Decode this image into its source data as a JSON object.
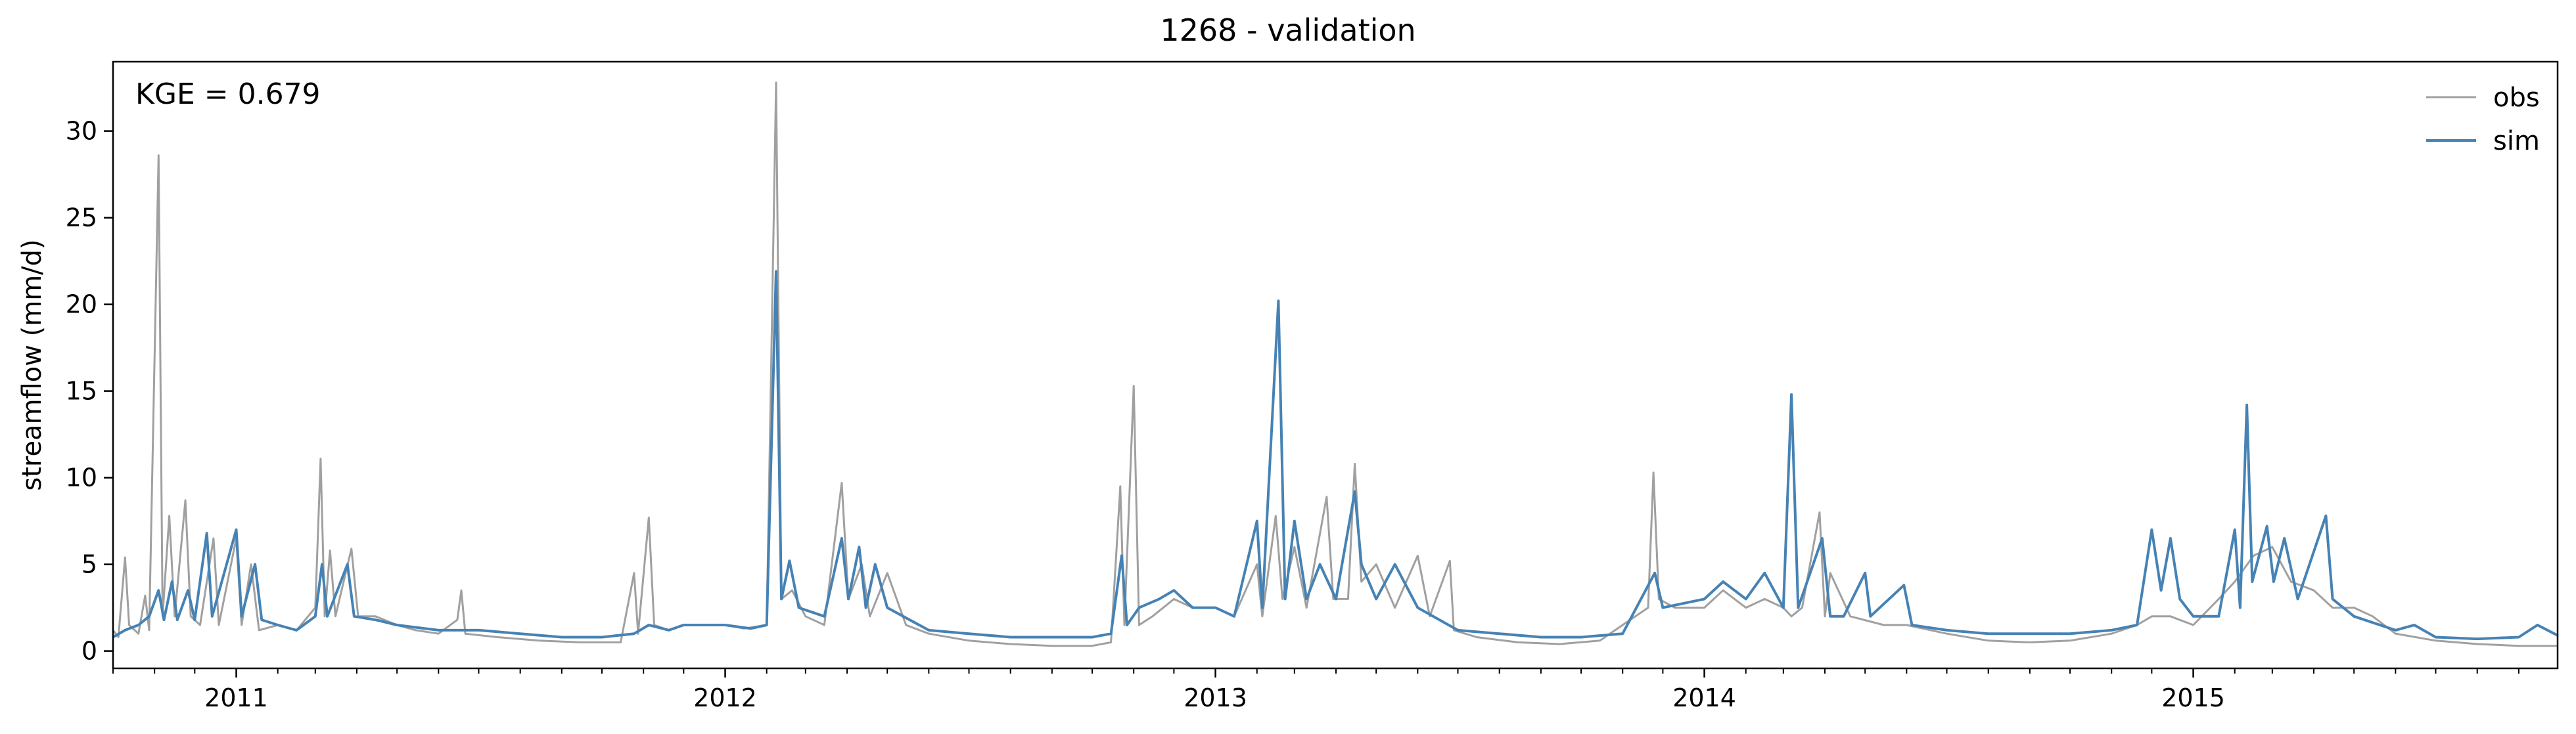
{
  "chart_data": {
    "type": "line",
    "title": "1268 - validation",
    "xlabel": "",
    "ylabel": "streamflow (mm/d)",
    "annotation": "KGE = 0.679",
    "xlim": [
      "2010-10-01",
      "2015-09-30"
    ],
    "ylim": [
      -1,
      34
    ],
    "yticks": [
      0,
      5,
      10,
      15,
      20,
      25,
      30
    ],
    "xticks": [
      {
        "date": "2011-01-01",
        "label": "2011"
      },
      {
        "date": "2012-01-01",
        "label": "2012"
      },
      {
        "date": "2013-01-01",
        "label": "2013"
      },
      {
        "date": "2014-01-01",
        "label": "2014"
      },
      {
        "date": "2015-01-01",
        "label": "2015"
      }
    ],
    "grid": false,
    "legend_position": "top-right",
    "series": [
      {
        "name": "obs",
        "color": "#a0a0a0",
        "points": [
          [
            "2010-10-01",
            1.2
          ],
          [
            "2010-10-05",
            0.8
          ],
          [
            "2010-10-10",
            5.4
          ],
          [
            "2010-10-13",
            1.5
          ],
          [
            "2010-10-20",
            1.0
          ],
          [
            "2010-10-25",
            3.2
          ],
          [
            "2010-10-28",
            1.2
          ],
          [
            "2010-11-04",
            28.6
          ],
          [
            "2010-11-07",
            2.0
          ],
          [
            "2010-11-12",
            7.8
          ],
          [
            "2010-11-16",
            2.0
          ],
          [
            "2010-11-24",
            8.7
          ],
          [
            "2010-11-28",
            2.0
          ],
          [
            "2010-12-05",
            1.5
          ],
          [
            "2010-12-15",
            6.5
          ],
          [
            "2010-12-19",
            1.5
          ],
          [
            "2011-01-01",
            6.5
          ],
          [
            "2011-01-05",
            1.5
          ],
          [
            "2011-01-12",
            5.0
          ],
          [
            "2011-01-18",
            1.2
          ],
          [
            "2011-02-01",
            1.5
          ],
          [
            "2011-02-15",
            1.2
          ],
          [
            "2011-03-01",
            2.5
          ],
          [
            "2011-03-05",
            11.1
          ],
          [
            "2011-03-08",
            2.0
          ],
          [
            "2011-03-12",
            5.8
          ],
          [
            "2011-03-16",
            2.0
          ],
          [
            "2011-03-28",
            5.9
          ],
          [
            "2011-04-02",
            2.0
          ],
          [
            "2011-04-15",
            2.0
          ],
          [
            "2011-05-01",
            1.5
          ],
          [
            "2011-05-15",
            1.2
          ],
          [
            "2011-06-01",
            1.0
          ],
          [
            "2011-06-15",
            1.8
          ],
          [
            "2011-06-18",
            3.5
          ],
          [
            "2011-06-21",
            1.0
          ],
          [
            "2011-07-15",
            0.8
          ],
          [
            "2011-08-15",
            0.6
          ],
          [
            "2011-09-15",
            0.5
          ],
          [
            "2011-10-15",
            0.5
          ],
          [
            "2011-10-25",
            4.5
          ],
          [
            "2011-10-28",
            1.0
          ],
          [
            "2011-11-05",
            7.7
          ],
          [
            "2011-11-09",
            1.5
          ],
          [
            "2011-11-20",
            1.2
          ],
          [
            "2011-12-01",
            1.5
          ],
          [
            "2011-12-15",
            1.5
          ],
          [
            "2012-01-01",
            1.5
          ],
          [
            "2012-01-15",
            1.3
          ],
          [
            "2012-02-01",
            1.5
          ],
          [
            "2012-02-08",
            32.8
          ],
          [
            "2012-02-12",
            3.0
          ],
          [
            "2012-02-20",
            3.5
          ],
          [
            "2012-03-01",
            2.0
          ],
          [
            "2012-03-15",
            1.5
          ],
          [
            "2012-03-28",
            9.7
          ],
          [
            "2012-04-02",
            3.0
          ],
          [
            "2012-04-12",
            5.0
          ],
          [
            "2012-04-18",
            2.0
          ],
          [
            "2012-05-01",
            4.5
          ],
          [
            "2012-05-15",
            1.5
          ],
          [
            "2012-06-01",
            1.0
          ],
          [
            "2012-07-01",
            0.6
          ],
          [
            "2012-08-01",
            0.4
          ],
          [
            "2012-09-01",
            0.3
          ],
          [
            "2012-10-01",
            0.3
          ],
          [
            "2012-10-15",
            0.5
          ],
          [
            "2012-10-22",
            9.5
          ],
          [
            "2012-10-25",
            1.5
          ],
          [
            "2012-11-01",
            15.3
          ],
          [
            "2012-11-05",
            1.5
          ],
          [
            "2012-11-15",
            2.0
          ],
          [
            "2012-12-01",
            3.0
          ],
          [
            "2012-12-15",
            2.5
          ],
          [
            "2013-01-01",
            2.5
          ],
          [
            "2013-01-15",
            2.0
          ],
          [
            "2013-02-01",
            5.0
          ],
          [
            "2013-02-05",
            2.0
          ],
          [
            "2013-02-15",
            7.8
          ],
          [
            "2013-02-20",
            3.0
          ],
          [
            "2013-03-01",
            6.0
          ],
          [
            "2013-03-10",
            2.5
          ],
          [
            "2013-03-25",
            8.9
          ],
          [
            "2013-03-30",
            3.0
          ],
          [
            "2013-04-10",
            3.0
          ],
          [
            "2013-04-15",
            10.8
          ],
          [
            "2013-04-20",
            4.0
          ],
          [
            "2013-05-01",
            5.0
          ],
          [
            "2013-05-15",
            2.5
          ],
          [
            "2013-06-01",
            5.5
          ],
          [
            "2013-06-10",
            2.0
          ],
          [
            "2013-06-25",
            5.2
          ],
          [
            "2013-06-28",
            1.2
          ],
          [
            "2013-07-15",
            0.8
          ],
          [
            "2013-08-15",
            0.5
          ],
          [
            "2013-09-15",
            0.4
          ],
          [
            "2013-10-15",
            0.6
          ],
          [
            "2013-11-01",
            1.5
          ],
          [
            "2013-11-20",
            2.5
          ],
          [
            "2013-11-24",
            10.3
          ],
          [
            "2013-11-28",
            3.0
          ],
          [
            "2013-12-10",
            2.5
          ],
          [
            "2014-01-01",
            2.5
          ],
          [
            "2014-01-15",
            3.5
          ],
          [
            "2014-02-01",
            2.5
          ],
          [
            "2014-02-15",
            3.0
          ],
          [
            "2014-03-01",
            2.5
          ],
          [
            "2014-03-07",
            2.0
          ],
          [
            "2014-03-15",
            2.5
          ],
          [
            "2014-03-28",
            8.0
          ],
          [
            "2014-04-01",
            2.0
          ],
          [
            "2014-04-05",
            4.5
          ],
          [
            "2014-04-20",
            2.0
          ],
          [
            "2014-05-15",
            1.5
          ],
          [
            "2014-06-01",
            1.5
          ],
          [
            "2014-07-01",
            1.0
          ],
          [
            "2014-08-01",
            0.6
          ],
          [
            "2014-09-01",
            0.5
          ],
          [
            "2014-10-01",
            0.6
          ],
          [
            "2014-11-01",
            1.0
          ],
          [
            "2014-11-20",
            1.5
          ],
          [
            "2014-12-01",
            2.0
          ],
          [
            "2014-12-15",
            2.0
          ],
          [
            "2015-01-01",
            1.5
          ],
          [
            "2015-01-20",
            3.0
          ],
          [
            "2015-02-01",
            4.0
          ],
          [
            "2015-02-15",
            5.5
          ],
          [
            "2015-03-01",
            6.0
          ],
          [
            "2015-03-15",
            4.0
          ],
          [
            "2015-04-01",
            3.5
          ],
          [
            "2015-04-15",
            2.5
          ],
          [
            "2015-05-01",
            2.5
          ],
          [
            "2015-05-15",
            2.0
          ],
          [
            "2015-06-01",
            1.0
          ],
          [
            "2015-07-01",
            0.6
          ],
          [
            "2015-08-01",
            0.4
          ],
          [
            "2015-09-01",
            0.3
          ],
          [
            "2015-09-30",
            0.3
          ]
        ]
      },
      {
        "name": "sim",
        "color": "#4682b4",
        "points": [
          [
            "2010-10-01",
            0.8
          ],
          [
            "2010-10-10",
            1.2
          ],
          [
            "2010-10-20",
            1.5
          ],
          [
            "2010-10-28",
            2.0
          ],
          [
            "2010-11-04",
            3.5
          ],
          [
            "2010-11-08",
            1.8
          ],
          [
            "2010-11-14",
            4.0
          ],
          [
            "2010-11-18",
            1.8
          ],
          [
            "2010-11-26",
            3.5
          ],
          [
            "2010-12-01",
            1.8
          ],
          [
            "2010-12-10",
            6.8
          ],
          [
            "2010-12-14",
            2.0
          ],
          [
            "2011-01-01",
            7.0
          ],
          [
            "2011-01-05",
            2.0
          ],
          [
            "2011-01-15",
            5.0
          ],
          [
            "2011-01-20",
            1.8
          ],
          [
            "2011-02-01",
            1.5
          ],
          [
            "2011-02-15",
            1.2
          ],
          [
            "2011-03-01",
            2.0
          ],
          [
            "2011-03-06",
            5.0
          ],
          [
            "2011-03-10",
            2.0
          ],
          [
            "2011-03-25",
            5.0
          ],
          [
            "2011-03-30",
            2.0
          ],
          [
            "2011-04-15",
            1.8
          ],
          [
            "2011-05-01",
            1.5
          ],
          [
            "2011-06-01",
            1.2
          ],
          [
            "2011-07-01",
            1.2
          ],
          [
            "2011-08-01",
            1.0
          ],
          [
            "2011-09-01",
            0.8
          ],
          [
            "2011-10-01",
            0.8
          ],
          [
            "2011-10-25",
            1.0
          ],
          [
            "2011-11-05",
            1.5
          ],
          [
            "2011-11-20",
            1.2
          ],
          [
            "2011-12-01",
            1.5
          ],
          [
            "2012-01-01",
            1.5
          ],
          [
            "2012-01-20",
            1.3
          ],
          [
            "2012-02-01",
            1.5
          ],
          [
            "2012-02-08",
            21.9
          ],
          [
            "2012-02-12",
            3.0
          ],
          [
            "2012-02-18",
            5.2
          ],
          [
            "2012-02-25",
            2.5
          ],
          [
            "2012-03-15",
            2.0
          ],
          [
            "2012-03-28",
            6.5
          ],
          [
            "2012-04-02",
            3.0
          ],
          [
            "2012-04-10",
            6.0
          ],
          [
            "2012-04-15",
            2.5
          ],
          [
            "2012-04-22",
            5.0
          ],
          [
            "2012-05-01",
            2.5
          ],
          [
            "2012-06-01",
            1.2
          ],
          [
            "2012-07-01",
            1.0
          ],
          [
            "2012-08-01",
            0.8
          ],
          [
            "2012-09-01",
            0.8
          ],
          [
            "2012-10-01",
            0.8
          ],
          [
            "2012-10-15",
            1.0
          ],
          [
            "2012-10-23",
            5.5
          ],
          [
            "2012-10-27",
            1.5
          ],
          [
            "2012-11-05",
            2.5
          ],
          [
            "2012-11-20",
            3.0
          ],
          [
            "2012-12-01",
            3.5
          ],
          [
            "2012-12-15",
            2.5
          ],
          [
            "2013-01-01",
            2.5
          ],
          [
            "2013-01-15",
            2.0
          ],
          [
            "2013-02-01",
            7.5
          ],
          [
            "2013-02-05",
            2.5
          ],
          [
            "2013-02-17",
            20.2
          ],
          [
            "2013-02-22",
            3.0
          ],
          [
            "2013-03-01",
            7.5
          ],
          [
            "2013-03-10",
            3.0
          ],
          [
            "2013-03-20",
            5.0
          ],
          [
            "2013-04-01",
            3.0
          ],
          [
            "2013-04-15",
            9.2
          ],
          [
            "2013-04-20",
            5.0
          ],
          [
            "2013-05-01",
            3.0
          ],
          [
            "2013-05-15",
            5.0
          ],
          [
            "2013-06-01",
            2.5
          ],
          [
            "2013-07-01",
            1.2
          ],
          [
            "2013-08-01",
            1.0
          ],
          [
            "2013-09-01",
            0.8
          ],
          [
            "2013-10-01",
            0.8
          ],
          [
            "2013-11-01",
            1.0
          ],
          [
            "2013-11-25",
            4.5
          ],
          [
            "2013-12-01",
            2.5
          ],
          [
            "2014-01-01",
            3.0
          ],
          [
            "2014-01-15",
            4.0
          ],
          [
            "2014-02-01",
            3.0
          ],
          [
            "2014-02-15",
            4.5
          ],
          [
            "2014-03-01",
            2.5
          ],
          [
            "2014-03-07",
            14.8
          ],
          [
            "2014-03-12",
            2.5
          ],
          [
            "2014-03-30",
            6.5
          ],
          [
            "2014-04-05",
            2.0
          ],
          [
            "2014-04-15",
            2.0
          ],
          [
            "2014-05-01",
            4.5
          ],
          [
            "2014-05-05",
            2.0
          ],
          [
            "2014-05-30",
            3.8
          ],
          [
            "2014-06-05",
            1.5
          ],
          [
            "2014-07-01",
            1.2
          ],
          [
            "2014-08-01",
            1.0
          ],
          [
            "2014-09-01",
            1.0
          ],
          [
            "2014-10-01",
            1.0
          ],
          [
            "2014-11-01",
            1.2
          ],
          [
            "2014-11-20",
            1.5
          ],
          [
            "2014-12-01",
            7.0
          ],
          [
            "2014-12-08",
            3.5
          ],
          [
            "2014-12-15",
            6.5
          ],
          [
            "2014-12-22",
            3.0
          ],
          [
            "2015-01-01",
            2.0
          ],
          [
            "2015-01-20",
            2.0
          ],
          [
            "2015-02-01",
            7.0
          ],
          [
            "2015-02-05",
            2.5
          ],
          [
            "2015-02-10",
            14.2
          ],
          [
            "2015-02-14",
            4.0
          ],
          [
            "2015-02-25",
            7.2
          ],
          [
            "2015-03-02",
            4.0
          ],
          [
            "2015-03-10",
            6.5
          ],
          [
            "2015-03-20",
            3.0
          ],
          [
            "2015-04-10",
            7.8
          ],
          [
            "2015-04-15",
            3.0
          ],
          [
            "2015-05-01",
            2.0
          ],
          [
            "2015-06-01",
            1.2
          ],
          [
            "2015-06-15",
            1.5
          ],
          [
            "2015-07-01",
            0.8
          ],
          [
            "2015-08-01",
            0.7
          ],
          [
            "2015-09-01",
            0.8
          ],
          [
            "2015-09-15",
            1.5
          ],
          [
            "2015-09-30",
            0.9
          ]
        ]
      }
    ]
  }
}
